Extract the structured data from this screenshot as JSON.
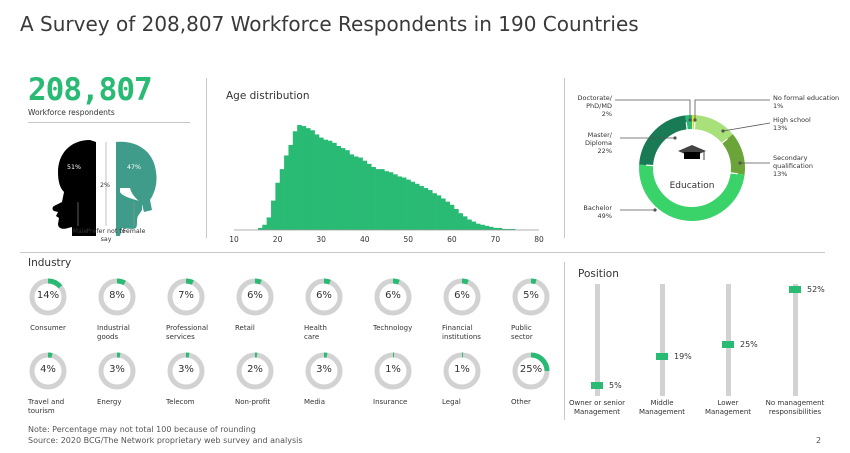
{
  "title": "A Survey of 208,807 Workforce Respondents in 190 Countries",
  "respondents": {
    "value": "208,807",
    "caption": "Workforce respondents"
  },
  "gender": [
    {
      "label": "Male",
      "pct": "51%"
    },
    {
      "label": "Prefer not to say",
      "pct": "2%"
    },
    {
      "label": "Female",
      "pct": "47%"
    }
  ],
  "colors": {
    "dark_green": "#197a56",
    "green": "#29ba74",
    "light_green": "#3ad36a",
    "olive": "#6ba53a",
    "pale_green": "#a8e07a",
    "yellow": "#d4df33",
    "grey": "#d2d2d2",
    "black": "#000000"
  },
  "chart_data": [
    {
      "type": "bar",
      "title": "Age distribution",
      "x": [
        16,
        17,
        18,
        19,
        20,
        21,
        22,
        23,
        24,
        25,
        26,
        27,
        28,
        29,
        30,
        31,
        32,
        33,
        34,
        35,
        36,
        37,
        38,
        39,
        40,
        41,
        42,
        43,
        44,
        45,
        46,
        47,
        48,
        49,
        50,
        51,
        52,
        53,
        54,
        55,
        56,
        57,
        58,
        59,
        60,
        61,
        62,
        63,
        64,
        65,
        66,
        67,
        68,
        69,
        70,
        71,
        72,
        73,
        74,
        75
      ],
      "values": [
        2,
        5,
        12,
        28,
        45,
        58,
        71,
        81,
        94,
        100,
        99,
        97,
        95,
        91,
        88,
        86,
        85,
        83,
        80,
        78,
        76,
        72,
        70,
        69,
        66,
        63,
        60,
        58,
        58,
        56,
        55,
        53,
        51,
        50,
        48,
        46,
        44,
        42,
        40,
        38,
        35,
        33,
        30,
        27,
        24,
        20,
        16,
        13,
        10,
        8,
        6,
        5,
        4,
        3,
        2,
        2,
        1,
        1,
        1,
        0
      ],
      "xticks": [
        10,
        20,
        30,
        40,
        50,
        60,
        70,
        80
      ],
      "xlim": [
        10,
        80
      ]
    },
    {
      "type": "pie",
      "title": "Education",
      "slices": [
        {
          "label": "No formal education",
          "value": 1
        },
        {
          "label": "High school",
          "value": 13
        },
        {
          "label": "Secondary qualification",
          "value": 13
        },
        {
          "label": "Bachelor",
          "value": 49
        },
        {
          "label": "Master/ Diploma",
          "value": 22
        },
        {
          "label": "Doctorate/ PhD/MD",
          "value": 2
        }
      ],
      "value_labels": [
        "1%",
        "13%",
        "13%",
        "49%",
        "22%",
        "2%"
      ]
    },
    {
      "type": "bar",
      "title": "Industry",
      "categories": [
        "Consumer",
        "Industrial goods",
        "Professional services",
        "Retail",
        "Health care",
        "Technology",
        "Financial institutions",
        "Public sector",
        "Travel and tourism",
        "Energy",
        "Telecom",
        "Non-profit",
        "Media",
        "Insurance",
        "Legal",
        "Other"
      ],
      "values": [
        14,
        8,
        7,
        6,
        6,
        6,
        6,
        5,
        4,
        3,
        3,
        2,
        3,
        1,
        1,
        25
      ],
      "value_labels": [
        "14%",
        "8%",
        "7%",
        "6%",
        "6%",
        "6%",
        "6%",
        "5%",
        "4%",
        "3%",
        "3%",
        "2%",
        "3%",
        "1%",
        "1%",
        "25%"
      ]
    },
    {
      "type": "bar",
      "title": "Position",
      "categories": [
        "Owner or senior Management",
        "Middle Management",
        "Lower Management",
        "No management responsibilities"
      ],
      "values": [
        5,
        19,
        25,
        52
      ],
      "value_labels": [
        "5%",
        "19%",
        "25%",
        "52%"
      ]
    }
  ],
  "industry_lines": [
    [
      "Consumer"
    ],
    [
      "Industrial",
      "goods"
    ],
    [
      "Professional",
      "services"
    ],
    [
      "Retail"
    ],
    [
      "Health",
      "care"
    ],
    [
      "Technology"
    ],
    [
      "Financial",
      "institutions"
    ],
    [
      "Public",
      "sector"
    ],
    [
      "Travel and",
      "tourism"
    ],
    [
      "Energy"
    ],
    [
      "Telecom"
    ],
    [
      "Non-profit"
    ],
    [
      "Media"
    ],
    [
      "Insurance"
    ],
    [
      "Legal"
    ],
    [
      "Other"
    ]
  ],
  "position_lines": [
    [
      "Owner or senior",
      "Management"
    ],
    [
      "Middle",
      "Management"
    ],
    [
      "Lower",
      "Management"
    ],
    [
      "No management",
      "responsibilities"
    ]
  ],
  "education_lines": [
    [
      "No formal education",
      "1%"
    ],
    [
      "High school",
      "13%"
    ],
    [
      "Secondary",
      "qualification",
      "13%"
    ],
    [
      "Bachelor",
      "49%"
    ],
    [
      "Master/",
      "Diploma",
      "22%"
    ],
    [
      "Doctorate/",
      "PhD/MD",
      "2%"
    ]
  ],
  "note": "Note: Percentage may not total 100 because of rounding",
  "source": "Source: 2020 BCG/The Network proprietary web survey and analysis",
  "page_number": "2"
}
